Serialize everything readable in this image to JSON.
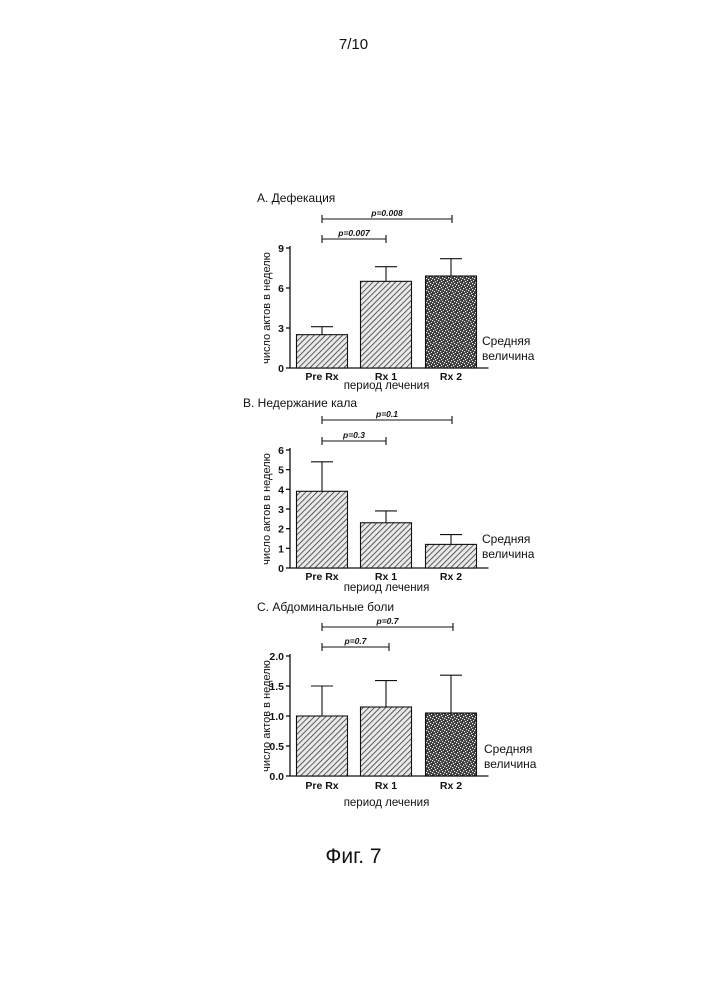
{
  "page_number": "7/10",
  "figure_caption": "Фиг. 7",
  "chart_data": [
    {
      "type": "bar",
      "title": "A. Дефекация",
      "xlabel": "период лечения",
      "ylabel": "число актов в неделю",
      "categories": [
        "Pre Rx",
        "Rx 1",
        "Rx 2"
      ],
      "series": [
        {
          "name": "Средняя величина",
          "values": [
            2.5,
            6.5,
            6.9
          ],
          "errors": [
            0.6,
            1.1,
            1.3
          ]
        }
      ],
      "ylim": [
        0,
        9
      ],
      "yticks": [
        "0",
        "3",
        "6",
        "9"
      ],
      "comparisons": [
        {
          "from": 0,
          "to": 1,
          "label": "p=0.007"
        },
        {
          "from": 0,
          "to": 2,
          "label": "p=0.008"
        }
      ],
      "legend_lines": [
        "Средняя",
        "величина"
      ],
      "fills": [
        "hatch",
        "hatch",
        "stipple"
      ]
    },
    {
      "type": "bar",
      "title": "B. Недержание кала",
      "xlabel": "период лечения",
      "ylabel": "число актов в неделю",
      "categories": [
        "Pre Rx",
        "Rx 1",
        "Rx 2"
      ],
      "series": [
        {
          "name": "Средняя величина",
          "values": [
            3.9,
            2.3,
            1.2
          ],
          "errors": [
            1.5,
            0.6,
            0.5
          ]
        }
      ],
      "ylim": [
        0,
        6
      ],
      "yticks": [
        "0",
        "1",
        "2",
        "3",
        "4",
        "5",
        "6"
      ],
      "comparisons": [
        {
          "from": 0,
          "to": 1,
          "label": "p=0.3"
        },
        {
          "from": 0,
          "to": 2,
          "label": "p=0.1"
        }
      ],
      "legend_lines": [
        "Средняя",
        "величина"
      ],
      "fills": [
        "hatch",
        "hatch",
        "hatch"
      ]
    },
    {
      "type": "bar",
      "title": "C. Абдоминальные боли",
      "xlabel": "период лечения",
      "ylabel": "число актов в неделю",
      "categories": [
        "Pre Rx",
        "Rx 1",
        "Rx 2"
      ],
      "series": [
        {
          "name": "Средняя величина",
          "values": [
            1.0,
            1.15,
            1.05
          ],
          "errors": [
            0.5,
            0.44,
            0.63
          ]
        }
      ],
      "ylim": [
        0,
        2
      ],
      "yticks": [
        "0.0",
        "0.5",
        "1.0",
        "1.5",
        "2.0"
      ],
      "comparisons": [
        {
          "from": 0,
          "to": 1,
          "label": "p=0.7"
        },
        {
          "from": 0,
          "to": 2,
          "label": "p=0.7"
        }
      ],
      "legend_lines": [
        "Средняя",
        "величина"
      ],
      "fills": [
        "hatch",
        "hatch",
        "stipple"
      ]
    }
  ]
}
